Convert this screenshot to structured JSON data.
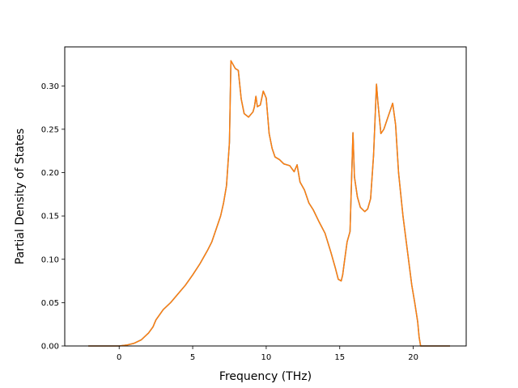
{
  "chart_data": {
    "type": "line",
    "title": "",
    "xlabel": "Frequency (THz)",
    "ylabel": "Partial Density of States",
    "xlim": [
      -3.7,
      23.6
    ],
    "ylim": [
      0.0,
      0.345
    ],
    "xticks": [
      0,
      5,
      10,
      15,
      20
    ],
    "yticks": [
      0.0,
      0.05,
      0.1,
      0.15,
      0.2,
      0.25,
      0.3
    ],
    "ytick_labels": [
      "0.00",
      "0.05",
      "0.10",
      "0.15",
      "0.20",
      "0.25",
      "0.30"
    ],
    "grid": false,
    "legend": "none",
    "series": [
      {
        "color": "#ff7f0e",
        "x": [
          -2.1,
          0.0,
          0.5,
          1.0,
          1.5,
          2.0,
          2.3,
          2.5,
          3.0,
          3.5,
          4.0,
          4.5,
          5.0,
          5.5,
          6.0,
          6.3,
          6.6,
          6.9,
          7.1,
          7.3,
          7.4,
          7.5,
          7.6,
          7.7,
          7.9,
          8.1,
          8.3,
          8.5,
          8.8,
          9.1,
          9.2,
          9.3,
          9.4,
          9.6,
          9.8,
          10.0,
          10.2,
          10.4,
          10.6,
          10.9,
          11.2,
          11.6,
          11.9,
          12.1,
          12.3,
          12.6,
          12.9,
          13.2,
          13.6,
          14.0,
          14.4,
          14.7,
          14.9,
          15.1,
          15.2,
          15.3,
          15.5,
          15.7,
          15.9,
          16.0,
          16.2,
          16.4,
          16.7,
          16.9,
          17.1,
          17.3,
          17.5,
          17.6,
          17.8,
          18.0,
          18.2,
          18.4,
          18.6,
          18.8,
          19.0,
          19.3,
          19.6,
          19.9,
          20.1,
          20.3,
          20.4,
          20.5,
          22.5
        ],
        "y": [
          0.0,
          0.0,
          0.001,
          0.003,
          0.007,
          0.015,
          0.022,
          0.03,
          0.042,
          0.05,
          0.06,
          0.07,
          0.082,
          0.095,
          0.11,
          0.12,
          0.135,
          0.15,
          0.165,
          0.185,
          0.21,
          0.235,
          0.329,
          0.326,
          0.32,
          0.318,
          0.285,
          0.268,
          0.264,
          0.27,
          0.276,
          0.288,
          0.276,
          0.278,
          0.294,
          0.286,
          0.245,
          0.228,
          0.218,
          0.215,
          0.21,
          0.208,
          0.201,
          0.209,
          0.189,
          0.18,
          0.165,
          0.157,
          0.143,
          0.13,
          0.108,
          0.09,
          0.077,
          0.075,
          0.082,
          0.095,
          0.12,
          0.132,
          0.246,
          0.195,
          0.172,
          0.16,
          0.155,
          0.158,
          0.17,
          0.22,
          0.302,
          0.28,
          0.245,
          0.25,
          0.26,
          0.27,
          0.28,
          0.255,
          0.2,
          0.15,
          0.11,
          0.07,
          0.05,
          0.028,
          0.01,
          0.0,
          0.0
        ]
      },
      {
        "color": "#1f77b4",
        "x": [
          -2.1,
          0.0,
          0.5,
          1.0,
          1.5,
          2.0,
          2.3,
          2.5,
          3.0,
          3.5,
          4.0,
          4.5,
          5.0,
          5.5,
          6.0,
          6.3,
          6.6,
          6.9,
          7.1,
          7.3,
          7.4,
          7.5,
          7.6,
          7.7,
          7.9,
          8.1,
          8.3,
          8.5,
          8.8,
          9.1,
          9.2,
          9.3,
          9.4,
          9.6,
          9.8,
          10.0,
          10.2,
          10.4,
          10.6,
          10.9,
          11.2,
          11.6,
          11.9,
          12.1,
          12.3,
          12.6,
          12.9,
          13.2,
          13.6,
          14.0,
          14.4,
          14.7,
          14.9,
          15.1,
          15.2,
          15.3,
          15.5,
          15.7,
          15.9,
          16.0,
          16.2,
          16.4,
          16.7,
          16.9,
          17.1,
          17.3,
          17.5,
          17.6,
          17.8,
          18.0,
          18.2,
          18.4,
          18.6,
          18.8,
          19.0,
          19.3,
          19.6,
          19.9,
          20.1,
          20.3,
          20.4,
          20.5,
          22.5
        ],
        "y": [
          0.0,
          0.0,
          0.001,
          0.003,
          0.007,
          0.015,
          0.022,
          0.03,
          0.042,
          0.05,
          0.06,
          0.07,
          0.082,
          0.095,
          0.11,
          0.12,
          0.135,
          0.15,
          0.165,
          0.185,
          0.21,
          0.235,
          0.329,
          0.326,
          0.32,
          0.318,
          0.285,
          0.268,
          0.264,
          0.27,
          0.276,
          0.288,
          0.276,
          0.278,
          0.294,
          0.286,
          0.245,
          0.228,
          0.218,
          0.215,
          0.21,
          0.208,
          0.201,
          0.209,
          0.189,
          0.18,
          0.165,
          0.157,
          0.143,
          0.13,
          0.108,
          0.09,
          0.077,
          0.075,
          0.082,
          0.095,
          0.12,
          0.132,
          0.246,
          0.195,
          0.172,
          0.16,
          0.155,
          0.158,
          0.17,
          0.22,
          0.302,
          0.28,
          0.245,
          0.25,
          0.26,
          0.27,
          0.28,
          0.255,
          0.2,
          0.15,
          0.11,
          0.07,
          0.05,
          0.028,
          0.01,
          0.0,
          0.0
        ]
      }
    ]
  }
}
